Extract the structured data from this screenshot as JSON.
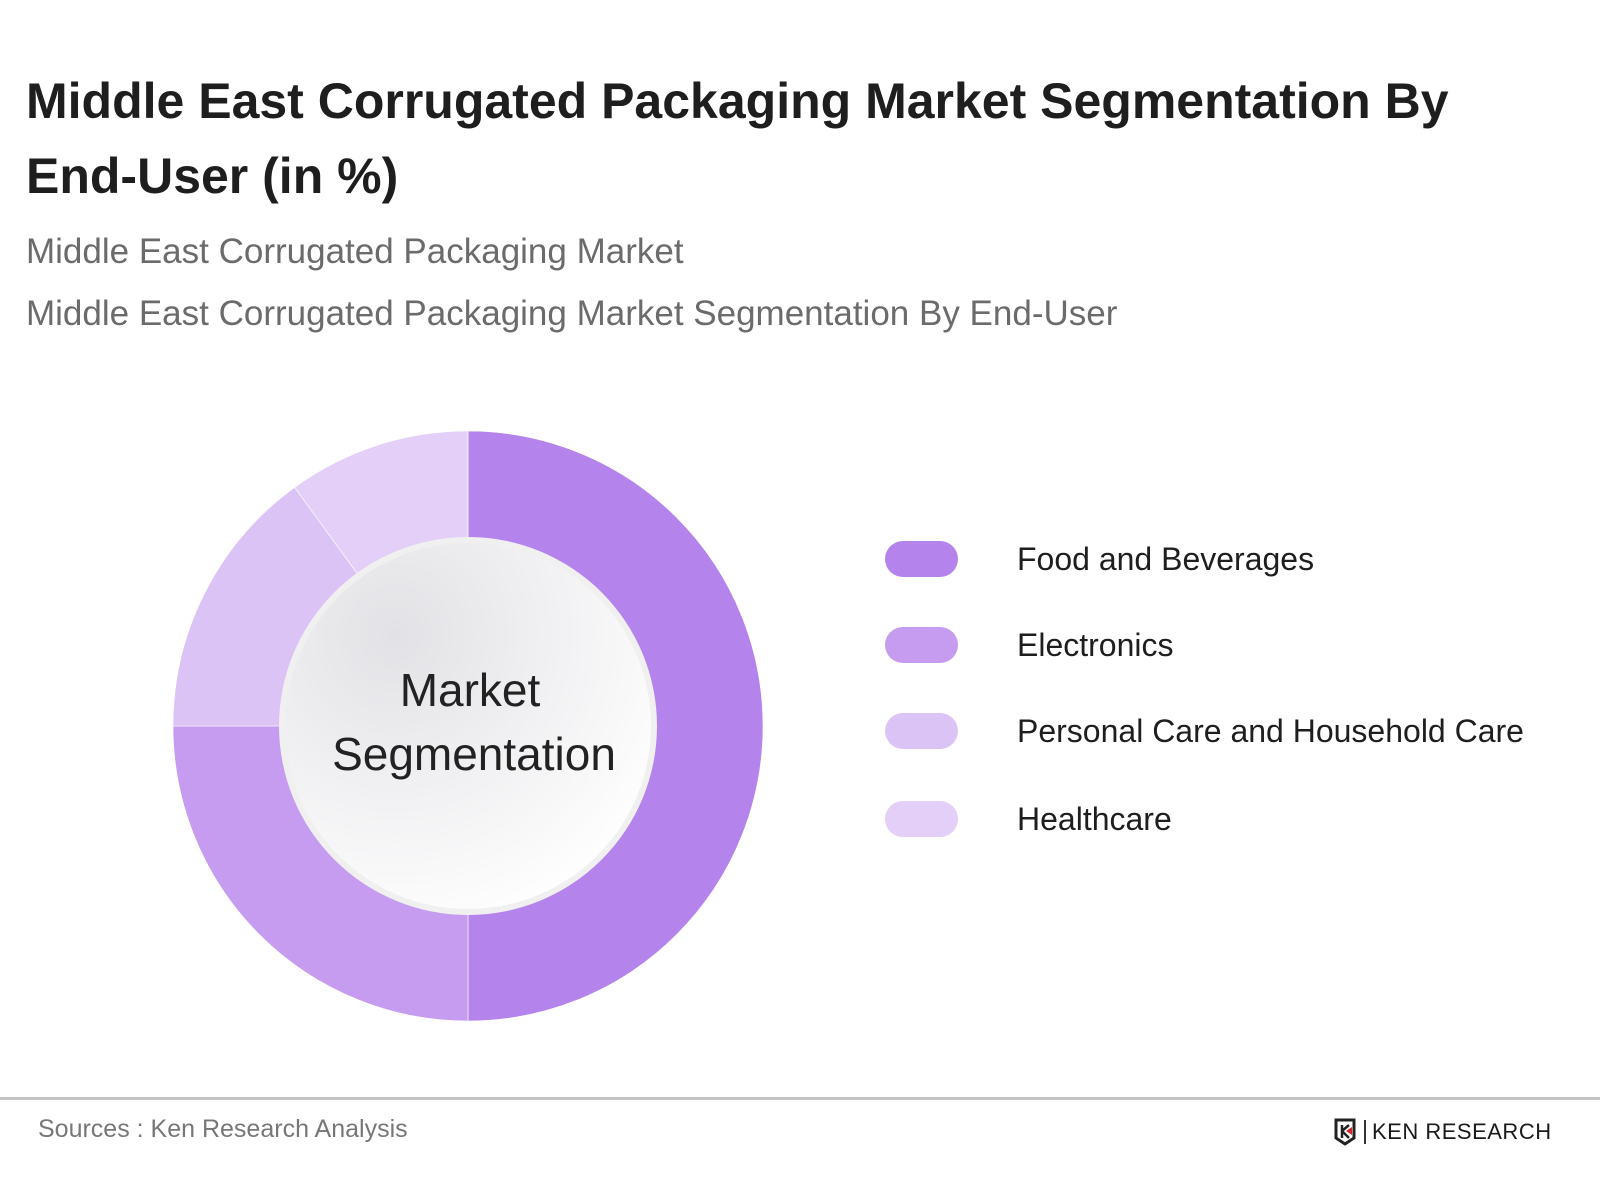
{
  "header": {
    "title": "Middle East Corrugated Packaging Market Segmentation By End-User (in %)",
    "subtitle1": "Middle East Corrugated Packaging Market",
    "subtitle2": "Middle East Corrugated Packaging Market Segmentation By End-User"
  },
  "chart_data": {
    "type": "pie",
    "variant": "donut",
    "center_label": [
      "Market",
      "Segmentation"
    ],
    "legend_position": "right",
    "categories": [
      "Food and Beverages",
      "Electronics",
      "Personal Care and Household Care",
      "Healthcare"
    ],
    "values": [
      50,
      25,
      15,
      10
    ],
    "colors": [
      "#b583ec",
      "#c59cef",
      "#dcc3f6",
      "#e3cff8"
    ]
  },
  "footer": {
    "source": "Sources : Ken Research Analysis",
    "logo_text": "KEN RESEARCH"
  }
}
